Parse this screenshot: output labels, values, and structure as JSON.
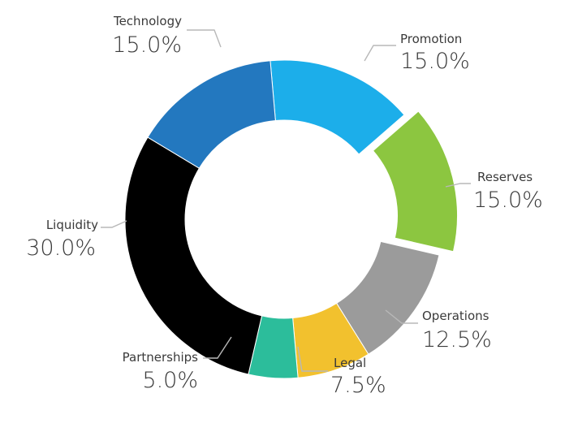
{
  "chart_data": {
    "type": "pie",
    "style": "donut",
    "exploded": "Reserves",
    "slices": [
      {
        "label": "Promotion",
        "value": 15.0,
        "display": "15.0%",
        "color": "#1caeea"
      },
      {
        "label": "Reserves",
        "value": 15.0,
        "display": "15.0%",
        "color": "#8cc640"
      },
      {
        "label": "Operations",
        "value": 12.5,
        "display": "12.5%",
        "color": "#9b9b9b"
      },
      {
        "label": "Legal",
        "value": 7.5,
        "display": "7.5%",
        "color": "#f2c12e"
      },
      {
        "label": "Partnerships",
        "value": 5.0,
        "display": "5.0%",
        "color": "#2cbd9b"
      },
      {
        "label": "Liquidity",
        "value": 30.0,
        "display": "30.0%",
        "color": "#000000"
      },
      {
        "label": "Technology",
        "value": 15.0,
        "display": "15.0%",
        "color": "#2378bf"
      }
    ]
  }
}
